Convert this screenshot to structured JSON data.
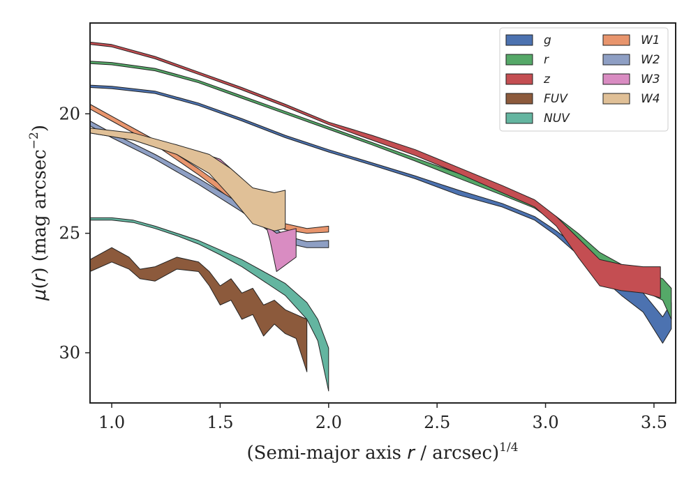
{
  "chart_data": {
    "type": "area",
    "xlabel": "(Semi-major axis r / arcsec)^{1/4}",
    "ylabel": "μ(r) (mag arcsec^{−2})",
    "xlim": [
      0.9,
      3.6
    ],
    "ylim": [
      32.1,
      16.2
    ],
    "y_inverted": true,
    "grid": false,
    "legend_position": "top-right",
    "legend_columns": 2,
    "x_ticks": [
      "1.0",
      "1.5",
      "2.0",
      "2.5",
      "3.0",
      "3.5"
    ],
    "y_ticks": [
      "20",
      "25",
      "30"
    ],
    "x_tick_values": [
      1.0,
      1.5,
      2.0,
      2.5,
      3.0,
      3.5
    ],
    "y_tick_values": [
      20,
      25,
      30
    ],
    "series": [
      {
        "name": "g",
        "color": "#4c72b0",
        "band": [
          [
            0.9,
            18.8,
            18.9
          ],
          [
            1.0,
            18.85,
            18.95
          ],
          [
            1.2,
            19.05,
            19.15
          ],
          [
            1.4,
            19.55,
            19.65
          ],
          [
            1.6,
            20.2,
            20.3
          ],
          [
            1.8,
            20.9,
            21.0
          ],
          [
            2.0,
            21.5,
            21.6
          ],
          [
            2.2,
            22.05,
            22.15
          ],
          [
            2.4,
            22.6,
            22.72
          ],
          [
            2.6,
            23.2,
            23.4
          ],
          [
            2.8,
            23.75,
            23.9
          ],
          [
            2.95,
            24.3,
            24.45
          ],
          [
            3.05,
            24.9,
            25.1
          ],
          [
            3.15,
            25.6,
            25.9
          ],
          [
            3.25,
            26.3,
            26.8
          ],
          [
            3.35,
            27.0,
            27.6
          ],
          [
            3.45,
            27.5,
            28.3
          ],
          [
            3.54,
            28.5,
            29.6
          ],
          [
            3.58,
            27.9,
            29.0
          ]
        ]
      },
      {
        "name": "r",
        "color": "#55a868",
        "band": [
          [
            0.9,
            17.8,
            17.9
          ],
          [
            1.0,
            17.85,
            17.95
          ],
          [
            1.2,
            18.1,
            18.2
          ],
          [
            1.4,
            18.6,
            18.7
          ],
          [
            1.6,
            19.25,
            19.35
          ],
          [
            1.8,
            19.9,
            20.0
          ],
          [
            2.0,
            20.55,
            20.65
          ],
          [
            2.2,
            21.2,
            21.3
          ],
          [
            2.4,
            21.85,
            21.98
          ],
          [
            2.6,
            22.5,
            22.7
          ],
          [
            2.8,
            23.2,
            23.4
          ],
          [
            2.95,
            23.75,
            23.95
          ],
          [
            3.05,
            24.3,
            24.6
          ],
          [
            3.15,
            25.0,
            25.5
          ],
          [
            3.25,
            25.8,
            26.4
          ],
          [
            3.35,
            26.3,
            27.0
          ],
          [
            3.45,
            26.6,
            27.4
          ],
          [
            3.54,
            26.9,
            27.8
          ],
          [
            3.58,
            27.3,
            28.6
          ]
        ]
      },
      {
        "name": "z",
        "color": "#c44e52",
        "band": [
          [
            0.9,
            17.0,
            17.1
          ],
          [
            1.0,
            17.1,
            17.2
          ],
          [
            1.2,
            17.6,
            17.7
          ],
          [
            1.4,
            18.25,
            18.35
          ],
          [
            1.6,
            18.9,
            19.0
          ],
          [
            1.8,
            19.6,
            19.7
          ],
          [
            2.0,
            20.35,
            20.45
          ],
          [
            2.2,
            20.9,
            21.1
          ],
          [
            2.4,
            21.5,
            21.75
          ],
          [
            2.6,
            22.25,
            22.5
          ],
          [
            2.8,
            23.0,
            23.3
          ],
          [
            2.95,
            23.6,
            23.9
          ],
          [
            3.05,
            24.3,
            24.7
          ],
          [
            3.15,
            25.2,
            26.0
          ],
          [
            3.25,
            26.1,
            27.2
          ],
          [
            3.35,
            26.3,
            27.4
          ],
          [
            3.45,
            26.4,
            27.5
          ],
          [
            3.53,
            26.4,
            27.7
          ]
        ]
      },
      {
        "name": "FUV",
        "color": "#8c5a3c",
        "band": [
          [
            0.9,
            26.1,
            26.6
          ],
          [
            1.0,
            25.6,
            26.2
          ],
          [
            1.08,
            26.0,
            26.5
          ],
          [
            1.13,
            26.5,
            26.9
          ],
          [
            1.2,
            26.4,
            27.0
          ],
          [
            1.3,
            26.0,
            26.5
          ],
          [
            1.4,
            26.2,
            26.6
          ],
          [
            1.45,
            26.6,
            27.2
          ],
          [
            1.5,
            27.2,
            28.0
          ],
          [
            1.55,
            26.9,
            27.8
          ],
          [
            1.6,
            27.5,
            28.6
          ],
          [
            1.65,
            27.3,
            28.4
          ],
          [
            1.7,
            28.0,
            29.3
          ],
          [
            1.75,
            27.8,
            28.8
          ],
          [
            1.8,
            28.2,
            29.2
          ],
          [
            1.85,
            28.4,
            29.4
          ],
          [
            1.9,
            28.6,
            30.8
          ]
        ]
      },
      {
        "name": "NUV",
        "color": "#64b5a0",
        "band": [
          [
            0.9,
            24.35,
            24.45
          ],
          [
            1.0,
            24.35,
            24.45
          ],
          [
            1.1,
            24.45,
            24.55
          ],
          [
            1.2,
            24.7,
            24.8
          ],
          [
            1.3,
            25.0,
            25.1
          ],
          [
            1.4,
            25.3,
            25.45
          ],
          [
            1.5,
            25.7,
            25.9
          ],
          [
            1.6,
            26.1,
            26.4
          ],
          [
            1.7,
            26.6,
            27.0
          ],
          [
            1.8,
            27.1,
            27.6
          ],
          [
            1.9,
            27.9,
            28.6
          ],
          [
            1.95,
            28.6,
            29.5
          ],
          [
            2.0,
            29.8,
            31.6
          ]
        ]
      },
      {
        "name": "W1",
        "color": "#e8956d",
        "band": [
          [
            0.9,
            19.6,
            19.8
          ],
          [
            1.0,
            20.1,
            20.3
          ],
          [
            1.2,
            21.1,
            21.3
          ],
          [
            1.4,
            22.3,
            22.55
          ],
          [
            1.6,
            23.6,
            23.9
          ],
          [
            1.8,
            24.6,
            24.85
          ],
          [
            1.9,
            24.8,
            25.0
          ],
          [
            2.0,
            24.7,
            24.95
          ]
        ]
      },
      {
        "name": "W2",
        "color": "#8e9fc4",
        "band": [
          [
            0.9,
            20.3,
            20.5
          ],
          [
            1.0,
            20.8,
            21.0
          ],
          [
            1.2,
            21.7,
            21.9
          ],
          [
            1.4,
            22.7,
            22.95
          ],
          [
            1.6,
            23.8,
            24.1
          ],
          [
            1.8,
            25.1,
            25.4
          ],
          [
            1.9,
            25.35,
            25.6
          ],
          [
            2.0,
            25.3,
            25.6
          ]
        ]
      },
      {
        "name": "W3",
        "color": "#d98cc2",
        "band": [
          [
            0.9,
            20.6,
            20.8
          ],
          [
            1.1,
            20.9,
            21.1
          ],
          [
            1.3,
            21.3,
            21.6
          ],
          [
            1.5,
            21.9,
            22.4
          ],
          [
            1.6,
            22.7,
            23.3
          ],
          [
            1.7,
            23.6,
            24.3
          ],
          [
            1.73,
            24.8,
            25.3
          ],
          [
            1.76,
            25.0,
            26.6
          ],
          [
            1.85,
            24.8,
            26.0
          ]
        ]
      },
      {
        "name": "W4",
        "color": "#e0c097",
        "band": [
          [
            0.9,
            20.6,
            20.8
          ],
          [
            1.1,
            20.8,
            21.1
          ],
          [
            1.3,
            21.3,
            21.7
          ],
          [
            1.45,
            21.7,
            22.5
          ],
          [
            1.55,
            22.3,
            23.5
          ],
          [
            1.65,
            23.1,
            24.6
          ],
          [
            1.75,
            23.3,
            24.9
          ],
          [
            1.8,
            23.2,
            24.8
          ]
        ]
      }
    ]
  }
}
